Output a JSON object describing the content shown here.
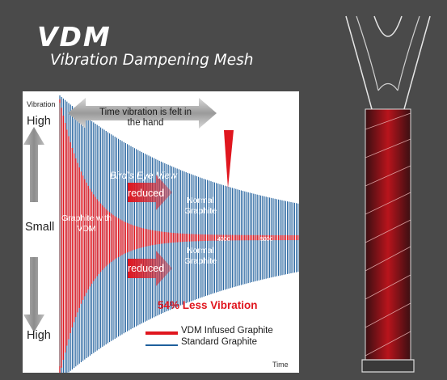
{
  "header": {
    "title": "VDM",
    "subtitle": "Vibration Dampening Mesh"
  },
  "diagram": {
    "y_axis_title": "Vibration",
    "y_top": "High",
    "y_middle": "Small",
    "y_bottom": "High",
    "x_axis_title": "Time",
    "tick_labels": [
      "4000",
      "5000"
    ],
    "time_arrow_text": "Time vibration is felt in the hand",
    "birds_eye_text": "Bird's Eye View",
    "reduced_label": "reduced",
    "graphite_vdm_label": "Graphite with VDM",
    "normal_graphite_label": "Normal Graphite",
    "headline": "54% Less Vibration",
    "legend": [
      {
        "label": "VDM Infused Graphite",
        "color": "#e0161e"
      },
      {
        "label": "Standard Graphite",
        "color": "#1f5f9c"
      }
    ]
  },
  "colors": {
    "background": "#4a4a4a",
    "vdm_red": "#e0161e",
    "standard_blue": "#1f5f9c"
  }
}
